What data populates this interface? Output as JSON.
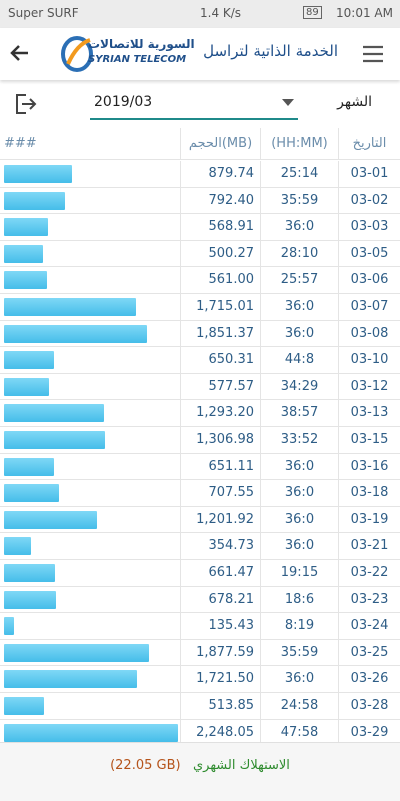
{
  "status_bar": {
    "carrier": "Super SURF",
    "speed": "1.4 K/s",
    "battery": "89",
    "time": "10:01 AM"
  },
  "header": {
    "logo_arabic": "السورية للاتصالات",
    "logo_english": "SYRIAN TELECOM",
    "title": "الخدمة الذاتية لتراسل"
  },
  "month": {
    "label": "الشهر",
    "selected": "2019/03"
  },
  "table": {
    "headers": {
      "date": "التاريخ",
      "time": "(HH:MM)",
      "volume": "الحجم(MB)",
      "bar": "###"
    },
    "rows": [
      {
        "date": "03-01",
        "time": "25:14",
        "volume": {
          "value": 879.74,
          "label": "879.74"
        }
      },
      {
        "date": "03-02",
        "time": "35:59",
        "volume": {
          "value": 792.4,
          "label": "792.40"
        }
      },
      {
        "date": "03-03",
        "time": "36:0",
        "volume": {
          "value": 568.91,
          "label": "568.91"
        }
      },
      {
        "date": "03-05",
        "time": "28:10",
        "volume": {
          "value": 500.27,
          "label": "500.27"
        }
      },
      {
        "date": "03-06",
        "time": "25:57",
        "volume": {
          "value": 561.0,
          "label": "561.00"
        }
      },
      {
        "date": "03-07",
        "time": "36:0",
        "volume": {
          "value": 1715.01,
          "label": "1,715.01"
        }
      },
      {
        "date": "03-08",
        "time": "36:0",
        "volume": {
          "value": 1851.37,
          "label": "1,851.37"
        }
      },
      {
        "date": "03-10",
        "time": "44:8",
        "volume": {
          "value": 650.31,
          "label": "650.31"
        }
      },
      {
        "date": "03-12",
        "time": "34:29",
        "volume": {
          "value": 577.57,
          "label": "577.57"
        }
      },
      {
        "date": "03-13",
        "time": "38:57",
        "volume": {
          "value": 1293.2,
          "label": "1,293.20"
        }
      },
      {
        "date": "03-15",
        "time": "33:52",
        "volume": {
          "value": 1306.98,
          "label": "1,306.98"
        }
      },
      {
        "date": "03-16",
        "time": "36:0",
        "volume": {
          "value": 651.11,
          "label": "651.11"
        }
      },
      {
        "date": "03-18",
        "time": "36:0",
        "volume": {
          "value": 707.55,
          "label": "707.55"
        }
      },
      {
        "date": "03-19",
        "time": "36:0",
        "volume": {
          "value": 1201.92,
          "label": "1,201.92"
        }
      },
      {
        "date": "03-21",
        "time": "36:0",
        "volume": {
          "value": 354.73,
          "label": "354.73"
        }
      },
      {
        "date": "03-22",
        "time": "19:15",
        "volume": {
          "value": 661.47,
          "label": "661.47"
        }
      },
      {
        "date": "03-23",
        "time": "18:6",
        "volume": {
          "value": 678.21,
          "label": "678.21"
        }
      },
      {
        "date": "03-24",
        "time": "8:19",
        "volume": {
          "value": 135.43,
          "label": "135.43"
        }
      },
      {
        "date": "03-25",
        "time": "35:59",
        "volume": {
          "value": 1877.59,
          "label": "1,877.59"
        }
      },
      {
        "date": "03-26",
        "time": "36:0",
        "volume": {
          "value": 1721.5,
          "label": "1,721.50"
        }
      },
      {
        "date": "03-28",
        "time": "24:58",
        "volume": {
          "value": 513.85,
          "label": "513.85"
        }
      },
      {
        "date": "03-29",
        "time": "47:58",
        "volume": {
          "value": 2248.05,
          "label": "2,248.05"
        }
      }
    ]
  },
  "footer": {
    "label": "الاستهلاك الشهري",
    "total": "(22.05 GB)"
  }
}
